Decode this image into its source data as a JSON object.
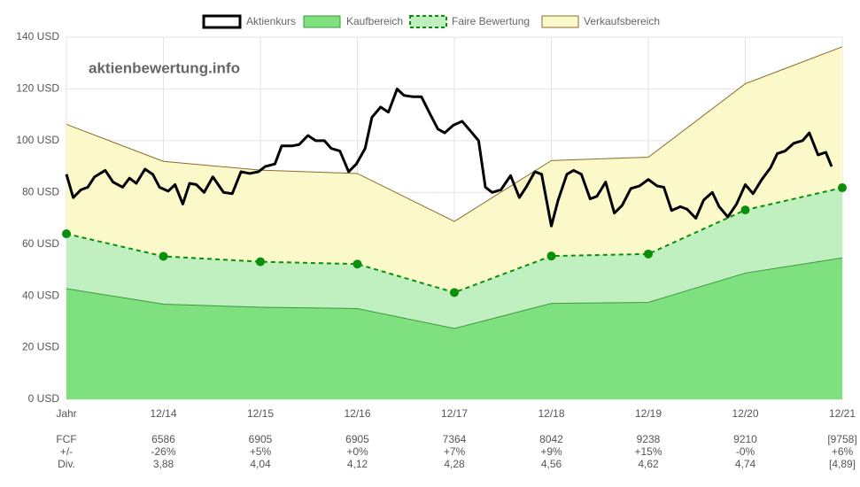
{
  "chart_data": {
    "type": "line",
    "watermark": "aktienbewertung.info",
    "categories": [
      "Jahr",
      "12/14",
      "12/15",
      "12/16",
      "12/17",
      "12/18",
      "12/19",
      "12/20",
      "12/21"
    ],
    "xlim": [
      0,
      8
    ],
    "ylim": [
      0,
      140
    ],
    "yticks": [
      {
        "value": 0,
        "label": "0 USD"
      },
      {
        "value": 20,
        "label": "20 USD"
      },
      {
        "value": 40,
        "label": "40 USD"
      },
      {
        "value": 60,
        "label": "60 USD"
      },
      {
        "value": 80,
        "label": "80 USD"
      },
      {
        "value": 100,
        "label": "100 USD"
      },
      {
        "value": 120,
        "label": "120 USD"
      },
      {
        "value": 140,
        "label": "140 USD"
      }
    ],
    "grid": true,
    "legend": "top",
    "series": [
      {
        "name": "Aktienkurs",
        "color": "#000000",
        "x": [
          0,
          0.07,
          0.15,
          0.22,
          0.29,
          0.4,
          0.48,
          0.58,
          0.65,
          0.72,
          0.81,
          0.89,
          0.96,
          1.05,
          1.12,
          1.2,
          1.27,
          1.34,
          1.42,
          1.51,
          1.62,
          1.71,
          1.8,
          1.89,
          1.98,
          2.05,
          2.15,
          2.22,
          2.33,
          2.4,
          2.49,
          2.57,
          2.66,
          2.73,
          2.82,
          2.91,
          2.99,
          3.08,
          3.15,
          3.24,
          3.32,
          3.41,
          3.48,
          3.57,
          3.66,
          3.74,
          3.83,
          3.9,
          3.99,
          4.08,
          4.16,
          4.25,
          4.32,
          4.39,
          4.48,
          4.58,
          4.67,
          4.74,
          4.83,
          4.9,
          5.0,
          5.07,
          5.16,
          5.23,
          5.31,
          5.4,
          5.47,
          5.56,
          5.65,
          5.73,
          5.82,
          5.91,
          6.0,
          6.09,
          6.16,
          6.24,
          6.33,
          6.4,
          6.49,
          6.57,
          6.66,
          6.73,
          6.82,
          6.91,
          7.0,
          7.08,
          7.17,
          7.26,
          7.33,
          7.41,
          7.5,
          7.59,
          7.66,
          7.75,
          7.83,
          7.89
        ],
        "values": [
          87,
          78,
          81,
          82,
          86,
          88.5,
          84,
          82,
          85.5,
          83.5,
          89,
          87,
          82,
          80.5,
          83,
          75.5,
          83.5,
          83,
          80,
          86,
          80,
          79.5,
          88,
          87.3,
          88,
          90,
          91,
          98,
          98,
          98.5,
          102,
          100,
          100,
          97,
          96,
          88,
          91,
          97,
          109,
          113,
          111,
          120,
          117.5,
          117,
          117,
          111,
          104.5,
          103,
          106,
          107.5,
          104,
          100,
          82,
          80,
          81,
          86.5,
          78,
          82,
          88,
          87,
          67,
          77,
          87,
          88.5,
          87,
          77.5,
          78.5,
          84,
          72,
          75,
          81.5,
          82.5,
          85,
          82.5,
          82,
          73,
          74.5,
          73.5,
          70,
          77,
          80,
          74.5,
          70.5,
          75.5,
          83,
          79.5,
          85,
          89.5,
          95,
          96,
          99,
          100,
          103,
          94.5,
          95.5,
          90
        ]
      },
      {
        "name": "Kaufbereich",
        "color": "#7ee07e",
        "values": [
          42.8,
          36.8,
          35.6,
          35.1,
          27.4,
          37.1,
          37.5,
          48.8,
          54.7
        ]
      },
      {
        "name": "Faire Bewertung",
        "color": "#c0f0c0",
        "values": [
          64,
          55.3,
          53.2,
          52.3,
          41.3,
          55.4,
          56.2,
          73.2,
          81.8
        ]
      },
      {
        "name": "Verkaufsbereich",
        "color": "#fbf9c9",
        "values": [
          106.3,
          92,
          88.6,
          87.3,
          68.8,
          92.3,
          93.6,
          122,
          136.3
        ]
      }
    ]
  },
  "table": {
    "rows": [
      {
        "label": "FCF",
        "values": [
          "6586",
          "6905",
          "6905",
          "7364",
          "8042",
          "9238",
          "9210",
          "[9758]"
        ]
      },
      {
        "label": "+/-",
        "values": [
          "-26%",
          "+5%",
          "+0%",
          "+7%",
          "+9%",
          "+15%",
          "-0%",
          "+6%"
        ]
      },
      {
        "label": "Div.",
        "values": [
          "3,88",
          "4,04",
          "4,12",
          "4,28",
          "4,56",
          "4,62",
          "4,74",
          "[4,89]"
        ]
      }
    ]
  }
}
